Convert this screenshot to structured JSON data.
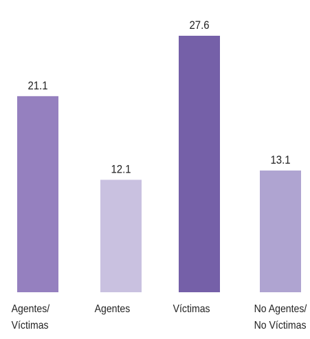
{
  "chart_data": {
    "type": "bar",
    "categories": [
      "Agentes/\nVíctimas",
      "Agentes",
      "Víctimas",
      "No Agentes/\nNo Víctimas"
    ],
    "values": [
      21.1,
      12.1,
      27.6,
      13.1
    ],
    "colors": [
      "#9580bf",
      "#c9c1e0",
      "#7560a8",
      "#afa4d1"
    ]
  }
}
